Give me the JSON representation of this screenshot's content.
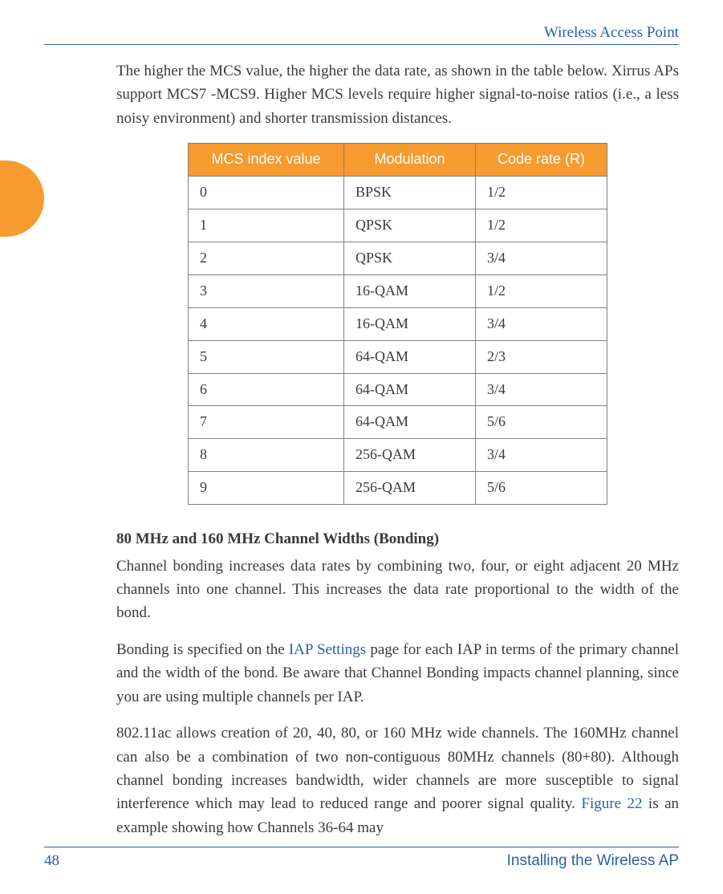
{
  "header": {
    "title": "Wireless Access Point"
  },
  "colors": {
    "accent_blue": "#2a5fa8",
    "accent_orange": "#f79a2f",
    "text": "#3a3a3a",
    "border_gray": "#808080",
    "white": "#ffffff"
  },
  "paragraphs": {
    "p1": "The higher the MCS value, the higher the data rate, as shown in the table below. Xirrus APs support MCS7 -MCS9. Higher MCS levels require higher signal-to-noise ratios (i.e., a less noisy environment) and shorter transmission distances."
  },
  "table": {
    "columns": [
      "MCS index value",
      "Modulation",
      "Code rate (R)"
    ],
    "rows": [
      [
        "0",
        "BPSK",
        "1/2"
      ],
      [
        "1",
        "QPSK",
        "1/2"
      ],
      [
        "2",
        "QPSK",
        "3/4"
      ],
      [
        "3",
        "16-QAM",
        "1/2"
      ],
      [
        "4",
        "16-QAM",
        "3/4"
      ],
      [
        "5",
        "64-QAM",
        "2/3"
      ],
      [
        "6",
        "64-QAM",
        "3/4"
      ],
      [
        "7",
        "64-QAM",
        "5/6"
      ],
      [
        "8",
        "256-QAM",
        "3/4"
      ],
      [
        "9",
        "256-QAM",
        "5/6"
      ]
    ]
  },
  "section_heading": "80 MHz and 160 MHz Channel Widths (Bonding)",
  "p2": "Channel bonding increases data rates by combining two, four, or eight adjacent 20 MHz channels into one channel. This increases the data rate proportional to the width of the bond.",
  "p3_pre": "Bonding is specified on the ",
  "p3_link": "IAP Settings",
  "p3_post": " page for each IAP in terms of the primary channel and the width of the bond. Be aware that Channel Bonding impacts channel planning, since you are using multiple channels per IAP.",
  "p4_pre": "802.11ac allows creation of 20, 40, 80, or 160 MHz wide channels. The 160MHz channel can also be a combination of two non-contiguous 80MHz channels (80+80). Although channel bonding increases bandwidth, wider channels are more susceptible to signal interference which may lead to reduced range and poorer signal quality. ",
  "p4_link": "Figure 22",
  "p4_post": " is an example showing how Channels 36-64 may",
  "footer": {
    "page": "48",
    "section": "Installing the Wireless AP"
  }
}
